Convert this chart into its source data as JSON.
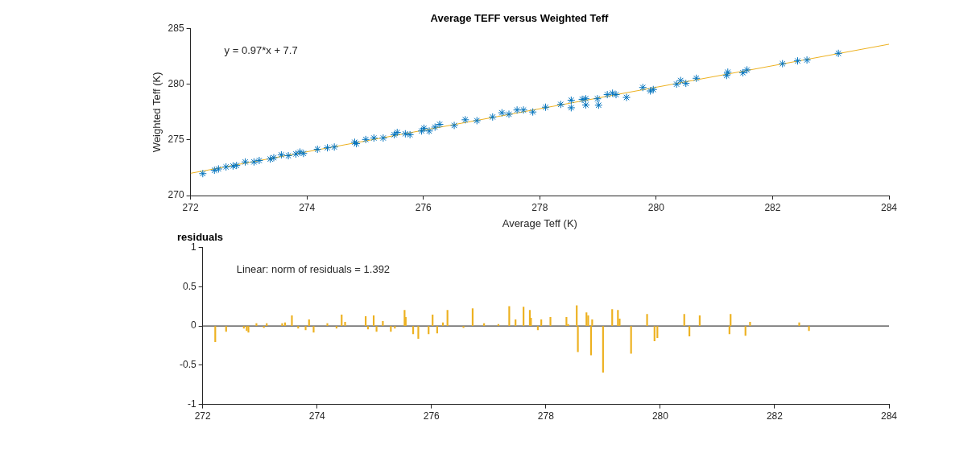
{
  "chart_data": [
    {
      "type": "scatter",
      "title": "Average TEFF versus Weighted Teff",
      "xlabel": "Average Teff (K)",
      "ylabel": "Weighted Teff (K)",
      "annotations": [
        "y = 0.97*x + 7.7"
      ],
      "xlim": [
        272,
        284
      ],
      "xticks": [
        272,
        274,
        276,
        278,
        280,
        282,
        284
      ],
      "ylim": [
        270,
        285
      ],
      "yticks": [
        270,
        275,
        280,
        285
      ],
      "grid": false,
      "legend": false,
      "series": [
        {
          "type": "scatter",
          "color": "#0072bd",
          "marker": "cross",
          "x": [
            272.21,
            272.41,
            272.48,
            272.61,
            272.73,
            272.79,
            272.94,
            273.09,
            273.18,
            273.37,
            273.43,
            273.56,
            273.68,
            273.81,
            273.88,
            273.94,
            274.18,
            274.35,
            274.47,
            274.82,
            274.85,
            275.01,
            275.15,
            275.31,
            275.5,
            275.55,
            275.69,
            275.77,
            275.97,
            276.01,
            276.1,
            276.2,
            276.28,
            276.53,
            276.72,
            276.92,
            277.19,
            277.35,
            277.47,
            277.61,
            277.72,
            277.88,
            278.1,
            278.36,
            278.54,
            278.54,
            278.73,
            278.79,
            278.79,
            278.99,
            279.01,
            279.16,
            279.25,
            279.31,
            279.49,
            279.77,
            279.9,
            279.95,
            280.35,
            280.42,
            280.51,
            280.69,
            281.21,
            281.23,
            281.49,
            281.56,
            282.17,
            282.43,
            282.59,
            283.13
          ],
          "values": [
            271.97,
            272.27,
            272.39,
            272.57,
            272.65,
            272.7,
            273.02,
            273.02,
            273.15,
            273.28,
            273.4,
            273.66,
            273.58,
            273.73,
            273.91,
            273.78,
            274.16,
            274.29,
            274.36,
            274.79,
            274.66,
            275.04,
            275.17,
            275.17,
            275.47,
            275.67,
            275.55,
            275.47,
            275.8,
            276.05,
            275.8,
            276.15,
            276.4,
            276.3,
            276.81,
            276.73,
            277.06,
            277.44,
            277.31,
            277.69,
            277.69,
            277.51,
            277.94,
            278.19,
            278.57,
            277.89,
            278.65,
            278.7,
            278.14,
            278.7,
            278.12,
            279.07,
            279.2,
            279.07,
            278.82,
            279.71,
            279.4,
            279.53,
            280.01,
            280.34,
            280.08,
            280.54,
            280.79,
            281.09,
            281.04,
            281.29,
            281.85,
            282.1,
            282.18,
            282.78
          ]
        },
        {
          "type": "line",
          "color": "#edb120",
          "marker": "none",
          "x": [
            272,
            284
          ],
          "values": [
            272.0,
            283.6
          ]
        }
      ]
    },
    {
      "type": "bar",
      "title": "residuals",
      "annotations": [
        "Linear: norm of residuals = 1.392"
      ],
      "xlim": [
        272,
        284
      ],
      "xticks": [
        272,
        274,
        276,
        278,
        280,
        282,
        284
      ],
      "ylim": [
        -1,
        1
      ],
      "yticks": [
        -1,
        -0.5,
        0,
        0.5,
        1
      ],
      "grid": false,
      "legend": false,
      "ref_lines": [
        {
          "axis": "y",
          "value": 0,
          "color": "#404040"
        }
      ],
      "series": [
        {
          "color": "#edb120",
          "x": [
            272.22,
            272.41,
            272.72,
            272.77,
            272.8,
            272.94,
            273.07,
            273.12,
            273.39,
            273.44,
            273.56,
            273.67,
            273.8,
            273.86,
            273.94,
            274.18,
            274.34,
            274.43,
            274.49,
            274.85,
            274.89,
            274.99,
            275.04,
            275.15,
            275.29,
            275.36,
            275.53,
            275.55,
            275.68,
            275.77,
            275.95,
            276.02,
            276.1,
            276.2,
            276.28,
            276.56,
            276.72,
            276.92,
            277.17,
            277.36,
            277.47,
            277.61,
            277.72,
            277.74,
            277.86,
            277.92,
            278.08,
            278.36,
            278.39,
            278.54,
            278.56,
            278.71,
            278.74,
            278.79,
            278.81,
            279.0,
            279.16,
            279.26,
            279.29,
            279.49,
            279.77,
            279.9,
            279.95,
            280.42,
            280.51,
            280.69,
            281.21,
            281.23,
            281.49,
            281.57,
            282.43,
            282.6
          ],
          "values": [
            -0.2,
            -0.07,
            -0.03,
            -0.06,
            -0.08,
            0.03,
            -0.02,
            0.03,
            0.03,
            0.04,
            0.13,
            -0.03,
            -0.05,
            0.08,
            -0.08,
            0.03,
            -0.03,
            0.14,
            0.05,
            0.12,
            -0.04,
            0.13,
            -0.07,
            0.06,
            -0.07,
            -0.03,
            0.2,
            0.11,
            -0.1,
            -0.16,
            -0.1,
            0.14,
            -0.09,
            0.04,
            0.2,
            -0.02,
            0.22,
            0.03,
            0.02,
            0.25,
            0.08,
            0.24,
            0.2,
            0.1,
            -0.05,
            0.08,
            0.11,
            0.11,
            0.02,
            0.26,
            -0.33,
            0.17,
            0.13,
            -0.37,
            0.08,
            -0.59,
            0.21,
            0.2,
            0.09,
            -0.35,
            0.15,
            -0.19,
            -0.15,
            0.15,
            -0.13,
            0.13,
            -0.1,
            0.15,
            -0.12,
            0.05,
            0.04,
            -0.06
          ]
        }
      ]
    }
  ]
}
